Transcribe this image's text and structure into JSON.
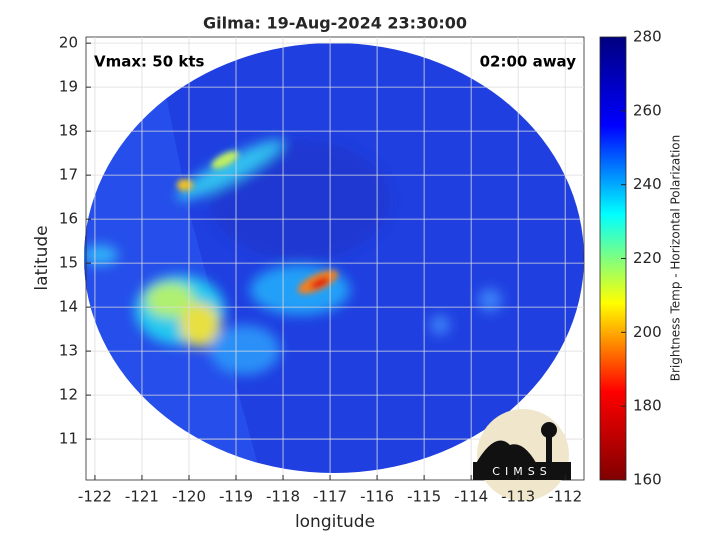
{
  "chart_data": {
    "type": "image",
    "title": "Gilma: 19-Aug-2024 23:30:00",
    "annotations": [
      "Vmax: 50 kts",
      "02:00 away"
    ],
    "xlabel": "longitude",
    "ylabel": "latitude",
    "xlim": [
      -122.19,
      -111.6
    ],
    "xticks": [
      -122,
      -121,
      -120,
      -119,
      -118,
      -117,
      -116,
      -115,
      -114,
      -113,
      -112
    ],
    "ylim": [
      10.07,
      20.14
    ],
    "yticks": [
      11,
      12,
      13,
      14,
      15,
      16,
      17,
      18,
      19,
      20
    ],
    "grid": true,
    "colormap": [
      "#800000",
      "#ff0000",
      "#ffff00",
      "#00ffff",
      "#0000ff",
      "#000080"
    ],
    "colorbar": {
      "label": "Brightness Temp - Horizontal Polarization",
      "lim": [
        160,
        280
      ],
      "ticks": [
        160,
        180,
        200,
        220,
        240,
        260,
        280
      ]
    },
    "logo": "CIMSS"
  }
}
